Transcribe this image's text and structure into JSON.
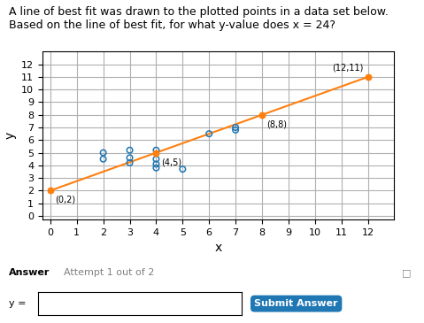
{
  "chart_data": {
    "type": "scatter",
    "title": "A line of best fit was drawn to the plotted points in a data set below. Based on the line of best fit, for what y-value does x = 24?",
    "xlabel": "x",
    "ylabel": "y",
    "series": [
      {
        "type": "scatter",
        "marker": "open_circle",
        "x": [
          2,
          2,
          3,
          3,
          3,
          4,
          4,
          4,
          4,
          5,
          6,
          7,
          7
        ],
        "values": [
          5.0,
          4.5,
          5.2,
          4.6,
          4.2,
          5.2,
          4.5,
          4.1,
          3.8,
          3.7,
          6.5,
          7.0,
          6.8
        ]
      },
      {
        "type": "line",
        "line_style": "solid",
        "x": [
          0,
          12
        ],
        "values": [
          2,
          11
        ]
      },
      {
        "type": "scatter",
        "marker": "circle",
        "x": [
          0,
          4,
          8,
          12
        ],
        "values": [
          2,
          5,
          8,
          11
        ]
      }
    ],
    "annotations": [
      {
        "text": "(0,2)",
        "x": 0,
        "y": 2
      },
      {
        "text": "(4,5)",
        "x": 4,
        "y": 5
      },
      {
        "text": "(8,8)",
        "x": 8,
        "y": 8
      },
      {
        "text": "(12,11)",
        "x": 12,
        "y": 11
      },
      {
        "text": "Answer"
      },
      {
        "text": "Attempt 1 out of 2"
      },
      {
        "text": "□"
      },
      {
        "text": "y ="
      },
      {
        "text": "Submit Answer"
      }
    ],
    "xlim": [
      -0.3,
      13
    ],
    "ylim": [
      -0.3,
      13
    ],
    "xticks": [
      0,
      1,
      2,
      3,
      4,
      5,
      6,
      7,
      8,
      9,
      10,
      11,
      12
    ],
    "yticks": [
      0,
      1,
      2,
      3,
      4,
      5,
      6,
      7,
      8,
      9,
      10,
      11,
      12
    ],
    "grid": true
  }
}
